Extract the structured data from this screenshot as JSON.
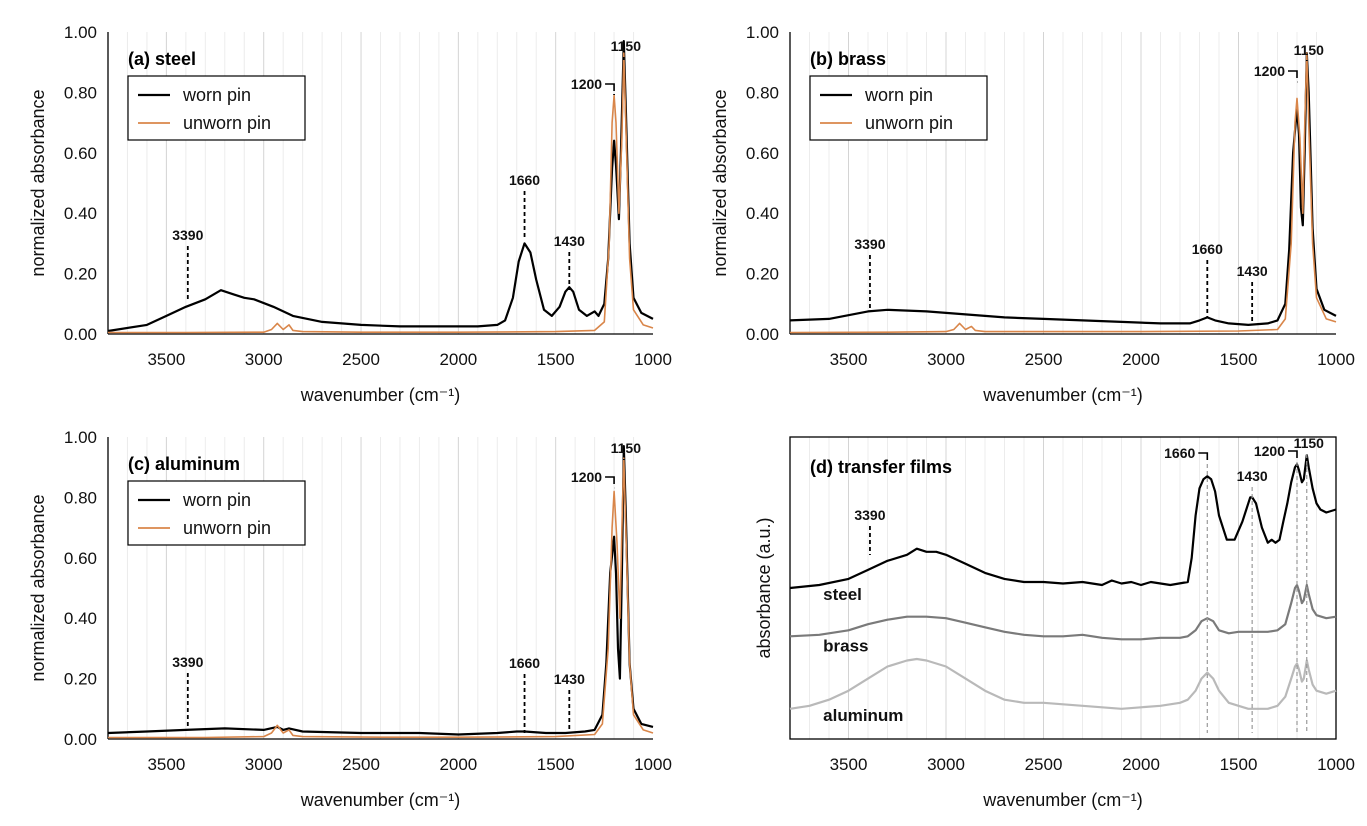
{
  "chart_data": [
    {
      "id": "a",
      "type": "line",
      "title": "(a) steel",
      "xlabel": "wavenumber (cm⁻¹)",
      "ylabel": "normalized absorbance",
      "xlim": [
        3800,
        1000
      ],
      "ylim": [
        0,
        1
      ],
      "xticks": [
        "3500",
        "3000",
        "2500",
        "2000",
        "1500",
        "1000"
      ],
      "yticks": [
        "0.00",
        "0.20",
        "0.40",
        "0.60",
        "0.80",
        "1.00"
      ],
      "grid": "vertical",
      "legend": {
        "placement": "top-left",
        "entries": [
          "worn pin",
          "unworn pin"
        ]
      },
      "series": [
        {
          "name": "worn pin",
          "color": "#000000",
          "x": [
            3800,
            3600,
            3500,
            3400,
            3300,
            3220,
            3150,
            3100,
            3050,
            2950,
            2850,
            2700,
            2500,
            2300,
            2100,
            1900,
            1800,
            1760,
            1720,
            1690,
            1660,
            1630,
            1600,
            1560,
            1520,
            1480,
            1450,
            1430,
            1410,
            1380,
            1340,
            1300,
            1280,
            1250,
            1230,
            1210,
            1200,
            1190,
            1175,
            1165,
            1150,
            1140,
            1120,
            1100,
            1060,
            1000
          ],
          "y": [
            0.01,
            0.03,
            0.06,
            0.09,
            0.115,
            0.145,
            0.13,
            0.12,
            0.115,
            0.09,
            0.06,
            0.04,
            0.03,
            0.025,
            0.025,
            0.025,
            0.03,
            0.045,
            0.12,
            0.24,
            0.3,
            0.27,
            0.18,
            0.08,
            0.06,
            0.09,
            0.14,
            0.155,
            0.14,
            0.08,
            0.06,
            0.075,
            0.06,
            0.1,
            0.25,
            0.55,
            0.64,
            0.56,
            0.38,
            0.6,
            0.97,
            0.75,
            0.3,
            0.12,
            0.07,
            0.05
          ]
        },
        {
          "name": "unworn pin",
          "color": "#d9864a",
          "x": [
            3800,
            3400,
            3000,
            2960,
            2930,
            2900,
            2870,
            2850,
            2800,
            2500,
            2000,
            1500,
            1300,
            1250,
            1225,
            1210,
            1200,
            1190,
            1175,
            1160,
            1150,
            1140,
            1120,
            1100,
            1050,
            1000
          ],
          "y": [
            0.005,
            0.005,
            0.006,
            0.015,
            0.035,
            0.015,
            0.03,
            0.012,
            0.008,
            0.006,
            0.006,
            0.008,
            0.012,
            0.04,
            0.3,
            0.7,
            0.79,
            0.7,
            0.4,
            0.65,
            0.93,
            0.7,
            0.25,
            0.08,
            0.03,
            0.02
          ]
        }
      ],
      "annotations": [
        {
          "label": "3390",
          "x": 3390,
          "y": 0.1
        },
        {
          "label": "1660",
          "x": 1660,
          "y": 0.3
        },
        {
          "label": "1430",
          "x": 1430,
          "y": 0.155
        },
        {
          "label": "1200",
          "x": 1200,
          "y": 0.79
        },
        {
          "label": "1150",
          "x": 1150,
          "y": 0.97
        }
      ]
    },
    {
      "id": "b",
      "type": "line",
      "title": "(b) brass",
      "xlabel": "wavenumber (cm⁻¹)",
      "ylabel": "normalized absorbance",
      "xlim": [
        3800,
        1000
      ],
      "ylim": [
        0,
        1
      ],
      "xticks": [
        "3500",
        "3000",
        "2500",
        "2000",
        "1500",
        "1000"
      ],
      "yticks": [
        "0.00",
        "0.20",
        "0.40",
        "0.60",
        "0.80",
        "1.00"
      ],
      "grid": "vertical",
      "legend": {
        "placement": "top-left",
        "entries": [
          "worn pin",
          "unworn pin"
        ]
      },
      "series": [
        {
          "name": "worn pin",
          "color": "#000000",
          "x": [
            3800,
            3600,
            3400,
            3300,
            3100,
            2900,
            2700,
            2500,
            2300,
            2100,
            1900,
            1750,
            1700,
            1660,
            1620,
            1550,
            1450,
            1350,
            1300,
            1260,
            1240,
            1220,
            1200,
            1190,
            1180,
            1170,
            1160,
            1150,
            1140,
            1120,
            1100,
            1060,
            1000
          ],
          "y": [
            0.045,
            0.05,
            0.075,
            0.08,
            0.075,
            0.065,
            0.055,
            0.05,
            0.045,
            0.04,
            0.035,
            0.035,
            0.045,
            0.055,
            0.045,
            0.035,
            0.03,
            0.035,
            0.045,
            0.1,
            0.28,
            0.6,
            0.75,
            0.66,
            0.42,
            0.36,
            0.62,
            0.93,
            0.8,
            0.35,
            0.15,
            0.08,
            0.06
          ]
        },
        {
          "name": "unworn pin",
          "color": "#d9864a",
          "x": [
            3800,
            3300,
            3000,
            2960,
            2930,
            2900,
            2870,
            2850,
            2800,
            2400,
            2000,
            1500,
            1300,
            1260,
            1230,
            1210,
            1200,
            1185,
            1170,
            1160,
            1150,
            1140,
            1120,
            1100,
            1050,
            1000
          ],
          "y": [
            0.005,
            0.006,
            0.008,
            0.015,
            0.035,
            0.015,
            0.025,
            0.012,
            0.008,
            0.008,
            0.008,
            0.01,
            0.015,
            0.05,
            0.3,
            0.7,
            0.78,
            0.65,
            0.4,
            0.7,
            0.93,
            0.7,
            0.3,
            0.12,
            0.05,
            0.04
          ]
        }
      ],
      "annotations": [
        {
          "label": "3390",
          "x": 3390,
          "y": 0.08
        },
        {
          "label": "1660",
          "x": 1660,
          "y": 0.055
        },
        {
          "label": "1430",
          "x": 1430,
          "y": 0.03
        },
        {
          "label": "1200",
          "x": 1200,
          "y": 0.78
        },
        {
          "label": "1150",
          "x": 1150,
          "y": 0.93
        }
      ]
    },
    {
      "id": "c",
      "type": "line",
      "title": "(c) aluminum",
      "xlabel": "wavenumber (cm⁻¹)",
      "ylabel": "normalized absorbance",
      "xlim": [
        3800,
        1000
      ],
      "ylim": [
        0,
        1
      ],
      "xticks": [
        "3500",
        "3000",
        "2500",
        "2000",
        "1500",
        "1000"
      ],
      "yticks": [
        "0.00",
        "0.20",
        "0.40",
        "0.60",
        "0.80",
        "1.00"
      ],
      "grid": "vertical",
      "legend": {
        "placement": "top-left",
        "entries": [
          "worn pin",
          "unworn pin"
        ]
      },
      "series": [
        {
          "name": "worn pin",
          "color": "#000000",
          "x": [
            3800,
            3600,
            3400,
            3200,
            3000,
            2930,
            2900,
            2870,
            2800,
            2500,
            2200,
            2000,
            1800,
            1700,
            1660,
            1550,
            1450,
            1350,
            1300,
            1260,
            1240,
            1220,
            1200,
            1190,
            1180,
            1170,
            1160,
            1150,
            1140,
            1120,
            1100,
            1060,
            1000
          ],
          "y": [
            0.02,
            0.025,
            0.03,
            0.035,
            0.03,
            0.04,
            0.03,
            0.035,
            0.025,
            0.02,
            0.02,
            0.015,
            0.02,
            0.025,
            0.025,
            0.02,
            0.02,
            0.025,
            0.03,
            0.08,
            0.25,
            0.55,
            0.67,
            0.55,
            0.3,
            0.2,
            0.55,
            0.97,
            0.75,
            0.25,
            0.1,
            0.05,
            0.04
          ]
        },
        {
          "name": "unworn pin",
          "color": "#d9864a",
          "x": [
            3800,
            3300,
            3000,
            2960,
            2930,
            2900,
            2870,
            2850,
            2800,
            2400,
            2000,
            1500,
            1300,
            1260,
            1230,
            1210,
            1200,
            1185,
            1170,
            1160,
            1150,
            1140,
            1120,
            1100,
            1050,
            1000
          ],
          "y": [
            0.005,
            0.005,
            0.008,
            0.02,
            0.045,
            0.02,
            0.03,
            0.012,
            0.008,
            0.006,
            0.006,
            0.008,
            0.015,
            0.05,
            0.3,
            0.7,
            0.82,
            0.65,
            0.4,
            0.7,
            0.93,
            0.7,
            0.25,
            0.08,
            0.03,
            0.02
          ]
        }
      ],
      "annotations": [
        {
          "label": "3390",
          "x": 3390,
          "y": 0.035
        },
        {
          "label": "1660",
          "x": 1660,
          "y": 0.025
        },
        {
          "label": "1430",
          "x": 1430,
          "y": 0.02
        },
        {
          "label": "1200",
          "x": 1200,
          "y": 0.82
        },
        {
          "label": "1150",
          "x": 1150,
          "y": 0.97
        }
      ]
    },
    {
      "id": "d",
      "type": "line",
      "title": "(d) transfer films",
      "xlabel": "wavenumber (cm⁻¹)",
      "ylabel": "absorbance (a.u.)",
      "xlim": [
        3800,
        1000
      ],
      "ylim": [
        0,
        1
      ],
      "xticks": [
        "3500",
        "3000",
        "2500",
        "2000",
        "1500",
        "1000"
      ],
      "grid": "vertical",
      "series": [
        {
          "name": "steel",
          "color": "#000000",
          "x": [
            3800,
            3650,
            3500,
            3400,
            3300,
            3200,
            3150,
            3100,
            3050,
            3000,
            2900,
            2800,
            2700,
            2600,
            2500,
            2400,
            2300,
            2200,
            2150,
            2100,
            2050,
            2000,
            1950,
            1850,
            1760,
            1740,
            1720,
            1700,
            1680,
            1660,
            1640,
            1620,
            1600,
            1560,
            1520,
            1480,
            1460,
            1440,
            1430,
            1410,
            1380,
            1350,
            1330,
            1310,
            1290,
            1270,
            1250,
            1230,
            1210,
            1200,
            1190,
            1175,
            1165,
            1150,
            1140,
            1120,
            1100,
            1080,
            1050,
            1000
          ],
          "y": [
            0.5,
            0.51,
            0.53,
            0.56,
            0.59,
            0.61,
            0.63,
            0.62,
            0.62,
            0.61,
            0.58,
            0.55,
            0.53,
            0.52,
            0.52,
            0.515,
            0.52,
            0.51,
            0.525,
            0.515,
            0.52,
            0.51,
            0.52,
            0.51,
            0.52,
            0.6,
            0.74,
            0.83,
            0.86,
            0.87,
            0.86,
            0.82,
            0.74,
            0.66,
            0.66,
            0.72,
            0.76,
            0.8,
            0.8,
            0.78,
            0.7,
            0.65,
            0.66,
            0.65,
            0.66,
            0.72,
            0.78,
            0.85,
            0.9,
            0.91,
            0.89,
            0.85,
            0.86,
            0.94,
            0.9,
            0.83,
            0.78,
            0.76,
            0.75,
            0.76
          ]
        },
        {
          "name": "brass",
          "color": "#7a7a7a",
          "x": [
            3800,
            3650,
            3500,
            3400,
            3300,
            3200,
            3100,
            3000,
            2900,
            2800,
            2700,
            2600,
            2500,
            2400,
            2300,
            2200,
            2100,
            2000,
            1900,
            1800,
            1760,
            1720,
            1690,
            1660,
            1630,
            1600,
            1550,
            1500,
            1450,
            1400,
            1350,
            1300,
            1260,
            1230,
            1210,
            1200,
            1190,
            1175,
            1165,
            1150,
            1140,
            1120,
            1100,
            1050,
            1000
          ],
          "y": [
            0.34,
            0.345,
            0.36,
            0.38,
            0.395,
            0.405,
            0.405,
            0.4,
            0.385,
            0.37,
            0.355,
            0.345,
            0.34,
            0.34,
            0.345,
            0.335,
            0.33,
            0.33,
            0.335,
            0.335,
            0.34,
            0.36,
            0.39,
            0.4,
            0.39,
            0.36,
            0.35,
            0.355,
            0.355,
            0.355,
            0.355,
            0.36,
            0.38,
            0.45,
            0.5,
            0.51,
            0.49,
            0.45,
            0.46,
            0.51,
            0.48,
            0.43,
            0.41,
            0.4,
            0.405
          ]
        },
        {
          "name": "aluminum",
          "color": "#b9b9b9",
          "x": [
            3800,
            3700,
            3600,
            3500,
            3400,
            3300,
            3200,
            3150,
            3100,
            3000,
            2900,
            2800,
            2700,
            2600,
            2500,
            2400,
            2300,
            2200,
            2100,
            2000,
            1900,
            1800,
            1760,
            1720,
            1690,
            1660,
            1630,
            1600,
            1550,
            1500,
            1450,
            1400,
            1350,
            1300,
            1260,
            1230,
            1210,
            1200,
            1190,
            1175,
            1165,
            1150,
            1140,
            1120,
            1100,
            1050,
            1000
          ],
          "y": [
            0.1,
            0.11,
            0.13,
            0.16,
            0.2,
            0.24,
            0.26,
            0.265,
            0.26,
            0.24,
            0.2,
            0.16,
            0.13,
            0.12,
            0.12,
            0.115,
            0.11,
            0.105,
            0.1,
            0.105,
            0.11,
            0.12,
            0.13,
            0.16,
            0.2,
            0.22,
            0.2,
            0.16,
            0.12,
            0.11,
            0.1,
            0.1,
            0.1,
            0.11,
            0.14,
            0.2,
            0.24,
            0.25,
            0.23,
            0.19,
            0.2,
            0.26,
            0.23,
            0.18,
            0.16,
            0.15,
            0.16
          ]
        }
      ],
      "series_labels": [
        {
          "label": "steel",
          "x": 3630,
          "y": 0.48
        },
        {
          "label": "brass",
          "x": 3630,
          "y": 0.31
        },
        {
          "label": "aluminum",
          "x": 3630,
          "y": 0.08
        }
      ],
      "annotations": [
        {
          "label": "3390",
          "x": 3390,
          "y": 0.56
        },
        {
          "label": "1660",
          "x": 1660,
          "y": 0.87
        },
        {
          "label": "1430",
          "x": 1430,
          "y": 0.8
        },
        {
          "label": "1200",
          "x": 1200,
          "y": 0.91
        },
        {
          "label": "1150",
          "x": 1150,
          "y": 0.94
        }
      ]
    }
  ]
}
